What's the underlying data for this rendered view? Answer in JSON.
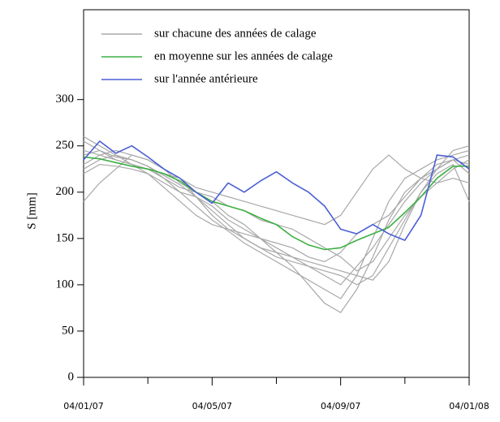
{
  "chart_data": {
    "type": "line",
    "ylabel": "S [mm]",
    "x": [
      0,
      0.5,
      1,
      1.5,
      2,
      2.5,
      3,
      3.5,
      4,
      4.5,
      5,
      5.5,
      6,
      6.5,
      7,
      7.5,
      8,
      8.5,
      9,
      9.5,
      10,
      10.5,
      11,
      11.5,
      12
    ],
    "xlim": [
      0,
      12
    ],
    "xticks": [
      {
        "value": 0,
        "label": "04/01/07"
      },
      {
        "value": 4,
        "label": "04/05/07"
      },
      {
        "value": 8,
        "label": "04/09/07"
      },
      {
        "value": 12,
        "label": "04/01/08"
      }
    ],
    "xminorticks": [
      2,
      6,
      10
    ],
    "ylim": [
      0,
      397
    ],
    "yticks": [
      0,
      50,
      100,
      150,
      200,
      250,
      300
    ],
    "grid": false,
    "legend": "top-left",
    "series": [
      {
        "name": "sur chacune des années de calage",
        "color": "#a8a8a8",
        "lines": [
          [
            255,
            245,
            238,
            235,
            228,
            215,
            200,
            185,
            170,
            158,
            145,
            135,
            125,
            115,
            105,
            95,
            85,
            110,
            150,
            190,
            215,
            225,
            235,
            240,
            245
          ],
          [
            220,
            230,
            228,
            225,
            220,
            210,
            200,
            195,
            185,
            170,
            160,
            150,
            140,
            130,
            120,
            110,
            100,
            120,
            140,
            165,
            190,
            210,
            225,
            235,
            230
          ],
          [
            190,
            210,
            225,
            240,
            235,
            225,
            210,
            200,
            190,
            175,
            165,
            150,
            135,
            120,
            100,
            80,
            70,
            95,
            130,
            170,
            200,
            215,
            225,
            235,
            240
          ],
          [
            240,
            245,
            235,
            230,
            225,
            220,
            215,
            205,
            200,
            195,
            190,
            185,
            180,
            175,
            170,
            165,
            175,
            200,
            225,
            240,
            225,
            215,
            210,
            215,
            210
          ],
          [
            230,
            240,
            245,
            240,
            235,
            225,
            215,
            195,
            175,
            160,
            150,
            140,
            130,
            125,
            120,
            115,
            110,
            100,
            110,
            140,
            170,
            200,
            225,
            245,
            250
          ],
          [
            260,
            250,
            240,
            230,
            220,
            205,
            190,
            175,
            165,
            160,
            155,
            150,
            145,
            140,
            130,
            125,
            135,
            155,
            165,
            175,
            195,
            215,
            230,
            235,
            220
          ],
          [
            225,
            235,
            240,
            235,
            228,
            218,
            208,
            195,
            180,
            165,
            150,
            140,
            135,
            130,
            125,
            120,
            115,
            110,
            105,
            125,
            165,
            200,
            220,
            230,
            190
          ],
          [
            245,
            240,
            235,
            230,
            225,
            215,
            205,
            200,
            195,
            185,
            180,
            170,
            165,
            160,
            150,
            140,
            130,
            115,
            125,
            150,
            175,
            195,
            210,
            225,
            235
          ]
        ]
      },
      {
        "name": "en moyenne sur les années de calage",
        "color": "#3cb043",
        "values": [
          238,
          236,
          232,
          228,
          225,
          220,
          212,
          200,
          190,
          185,
          180,
          172,
          165,
          152,
          143,
          138,
          140,
          148,
          155,
          162,
          178,
          195,
          215,
          228,
          228
        ]
      },
      {
        "name": "sur l'année antérieure",
        "color": "#4a5fd6",
        "values": [
          235,
          255,
          242,
          250,
          238,
          225,
          215,
          200,
          188,
          210,
          200,
          212,
          222,
          210,
          200,
          185,
          160,
          155,
          165,
          155,
          148,
          175,
          240,
          238,
          225
        ]
      }
    ]
  }
}
